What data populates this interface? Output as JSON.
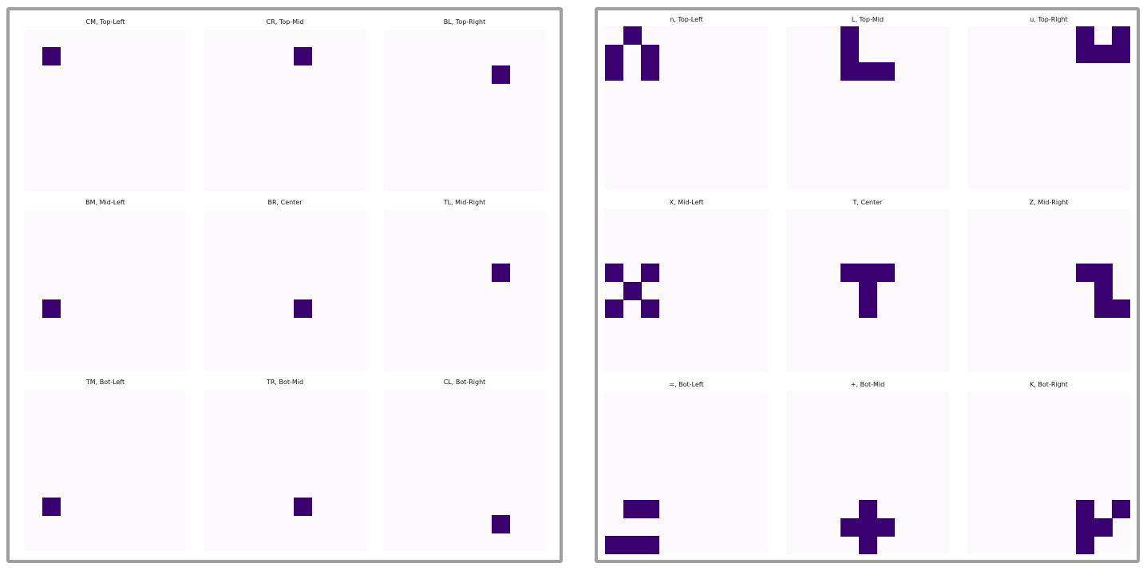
{
  "colors": {
    "background": "#fcfafd",
    "filled": "#3a006f",
    "frame": "#a0a0a0"
  },
  "panels": [
    {
      "id": "left",
      "grid_size": 9,
      "cells": [
        {
          "title": "CM, Top-Left",
          "pixels": [
            [
              1,
              1
            ]
          ]
        },
        {
          "title": "CR, Top-Mid",
          "pixels": [
            [
              1,
              5
            ]
          ]
        },
        {
          "title": "BL, Top-Right",
          "pixels": [
            [
              2,
              6
            ]
          ]
        },
        {
          "title": "BM, Mid-Left",
          "pixels": [
            [
              5,
              1
            ]
          ]
        },
        {
          "title": "BR, Center",
          "pixels": [
            [
              5,
              5
            ]
          ]
        },
        {
          "title": "TL, Mid-Right",
          "pixels": [
            [
              3,
              6
            ]
          ]
        },
        {
          "title": "TM, Bot-Left",
          "pixels": [
            [
              6,
              1
            ]
          ]
        },
        {
          "title": "TR, Bot-Mid",
          "pixels": [
            [
              6,
              5
            ]
          ]
        },
        {
          "title": "CL, Bot-Right",
          "pixels": [
            [
              7,
              6
            ]
          ]
        }
      ]
    },
    {
      "id": "right",
      "grid_size": 9,
      "cells": [
        {
          "title": "n, Top-Left",
          "pixels": [
            [
              0,
              1
            ],
            [
              1,
              0
            ],
            [
              1,
              2
            ],
            [
              2,
              0
            ],
            [
              2,
              2
            ]
          ]
        },
        {
          "title": "L, Top-Mid",
          "pixels": [
            [
              0,
              3
            ],
            [
              1,
              3
            ],
            [
              2,
              3
            ],
            [
              2,
              4
            ],
            [
              2,
              5
            ]
          ]
        },
        {
          "title": "u, Top-Right",
          "pixels": [
            [
              0,
              6
            ],
            [
              0,
              8
            ],
            [
              1,
              6
            ],
            [
              1,
              7
            ],
            [
              1,
              8
            ]
          ]
        },
        {
          "title": "X, Mid-Left",
          "pixels": [
            [
              3,
              0
            ],
            [
              3,
              2
            ],
            [
              4,
              1
            ],
            [
              5,
              0
            ],
            [
              5,
              2
            ]
          ]
        },
        {
          "title": "T, Center",
          "pixels": [
            [
              3,
              3
            ],
            [
              3,
              4
            ],
            [
              3,
              5
            ],
            [
              4,
              4
            ],
            [
              5,
              4
            ]
          ]
        },
        {
          "title": "Z, Mid-Right",
          "pixels": [
            [
              3,
              6
            ],
            [
              3,
              7
            ],
            [
              4,
              7
            ],
            [
              5,
              7
            ],
            [
              5,
              8
            ]
          ]
        },
        {
          "title": "=, Bot-Left",
          "pixels": [
            [
              6,
              1
            ],
            [
              6,
              2
            ],
            [
              8,
              0
            ],
            [
              8,
              1
            ],
            [
              8,
              2
            ]
          ]
        },
        {
          "title": "+, Bot-Mid",
          "pixels": [
            [
              6,
              4
            ],
            [
              7,
              3
            ],
            [
              7,
              4
            ],
            [
              7,
              5
            ],
            [
              8,
              4
            ]
          ]
        },
        {
          "title": "K, Bot-Right",
          "pixels": [
            [
              6,
              6
            ],
            [
              6,
              8
            ],
            [
              7,
              6
            ],
            [
              7,
              7
            ],
            [
              8,
              6
            ]
          ]
        }
      ]
    }
  ]
}
